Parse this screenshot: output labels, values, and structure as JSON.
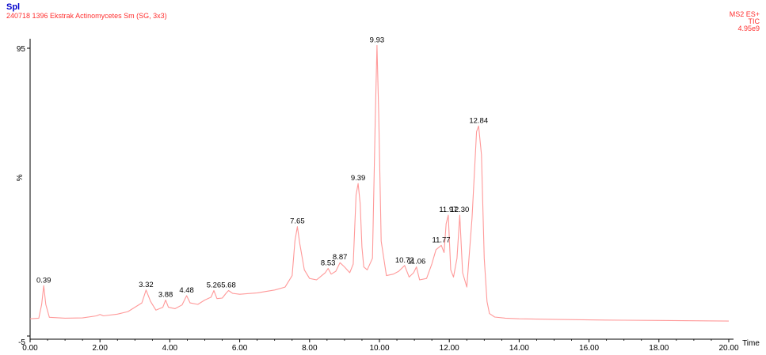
{
  "header": {
    "spl": "Spl",
    "sample": "240718 1396 Ekstrak Actinomycetes Sm (SG, 3x3)",
    "scan_mode": "MS2 ES+",
    "trace": "TIC",
    "intensity": "4.95e9"
  },
  "colors": {
    "trace": "#ff9999",
    "header_red": "#ff3030",
    "title_blue": "#0000cc"
  },
  "chart_data": {
    "type": "line",
    "xlabel": "Time",
    "ylabel": "%",
    "xlim": [
      0,
      20
    ],
    "ylim": [
      -5,
      100
    ],
    "x_ticks": [
      "0.00",
      "2.00",
      "4.00",
      "6.00",
      "8.00",
      "10.00",
      "12.00",
      "14.00",
      "16.00",
      "18.00",
      "20.00"
    ],
    "y_ticks": [
      "95",
      "-5"
    ],
    "series": [
      {
        "x": [
          0.0,
          0.25,
          0.33,
          0.39,
          0.45,
          0.55,
          1.0,
          1.5,
          1.9,
          2.0,
          2.1,
          2.5,
          2.8,
          3.0,
          3.2,
          3.32,
          3.45,
          3.6,
          3.8,
          3.88,
          3.96,
          4.15,
          4.35,
          4.48,
          4.58,
          4.8,
          5.0,
          5.18,
          5.26,
          5.35,
          5.5,
          5.62,
          5.68,
          5.8,
          6.0,
          6.5,
          7.0,
          7.3,
          7.5,
          7.58,
          7.65,
          7.72,
          7.85,
          8.0,
          8.2,
          8.35,
          8.45,
          8.53,
          8.62,
          8.75,
          8.87,
          9.0,
          9.15,
          9.25,
          9.33,
          9.39,
          9.45,
          9.5,
          9.55,
          9.65,
          9.8,
          9.88,
          9.93,
          9.98,
          10.05,
          10.2,
          10.4,
          10.55,
          10.72,
          10.85,
          10.98,
          11.06,
          11.15,
          11.35,
          11.5,
          11.62,
          11.77,
          11.85,
          11.91,
          11.97,
          12.04,
          12.12,
          12.22,
          12.3,
          12.38,
          12.5,
          12.65,
          12.78,
          12.84,
          12.92,
          13.0,
          13.08,
          13.15,
          13.3,
          13.6,
          14.0,
          15.0,
          16.0,
          17.0,
          18.0,
          19.0,
          20.0
        ],
        "y": [
          1.0,
          1.2,
          6.0,
          12.5,
          6.0,
          1.5,
          1.2,
          1.3,
          2.0,
          2.5,
          2.0,
          2.6,
          3.5,
          5.0,
          6.5,
          11.0,
          7.0,
          4.0,
          5.0,
          7.5,
          5.0,
          4.5,
          5.8,
          9.0,
          6.5,
          6.0,
          7.5,
          8.5,
          10.8,
          8.0,
          8.2,
          10.0,
          10.8,
          9.8,
          9.5,
          10.0,
          11.0,
          12.0,
          16.0,
          28.0,
          33.0,
          27.0,
          18.0,
          15.0,
          14.5,
          16.0,
          17.0,
          18.5,
          16.5,
          17.5,
          20.5,
          19.0,
          17.0,
          20.0,
          44.0,
          48.0,
          41.0,
          26.0,
          19.0,
          18.0,
          22.0,
          70.0,
          96.0,
          72.0,
          28.0,
          16.0,
          16.5,
          17.5,
          19.5,
          15.5,
          17.0,
          19.0,
          14.5,
          15.0,
          20.0,
          25.0,
          26.5,
          24.0,
          34.0,
          37.0,
          18.0,
          15.5,
          22.0,
          37.0,
          17.0,
          12.0,
          36.0,
          66.0,
          68.0,
          58.0,
          22.0,
          7.0,
          2.8,
          1.6,
          1.2,
          1.0,
          0.8,
          0.6,
          0.5,
          0.4,
          0.3,
          0.2
        ]
      }
    ],
    "peaks": [
      {
        "label": "0.39",
        "x": 0.39,
        "y": 12.5
      },
      {
        "label": "3.32",
        "x": 3.32,
        "y": 11.0
      },
      {
        "label": "3.88",
        "x": 3.88,
        "y": 7.5
      },
      {
        "label": "4.48",
        "x": 4.48,
        "y": 9.0
      },
      {
        "label": "5.26",
        "x": 5.26,
        "y": 10.8
      },
      {
        "label": "5.68",
        "x": 5.68,
        "y": 10.8
      },
      {
        "label": "7.65",
        "x": 7.65,
        "y": 33.0
      },
      {
        "label": "8.53",
        "x": 8.53,
        "y": 18.5
      },
      {
        "label": "8.87",
        "x": 8.87,
        "y": 20.5
      },
      {
        "label": "9.39",
        "x": 9.39,
        "y": 48.0
      },
      {
        "label": "9.93",
        "x": 9.93,
        "y": 96.0
      },
      {
        "label": "10.72",
        "x": 10.72,
        "y": 19.5
      },
      {
        "label": "11.06",
        "x": 11.06,
        "y": 19.0
      },
      {
        "label": "11.77",
        "x": 11.77,
        "y": 26.5
      },
      {
        "label": "11.97",
        "x": 11.97,
        "y": 37.0
      },
      {
        "label": "12.30",
        "x": 12.3,
        "y": 37.0
      },
      {
        "label": "12.84",
        "x": 12.84,
        "y": 68.0
      }
    ]
  }
}
